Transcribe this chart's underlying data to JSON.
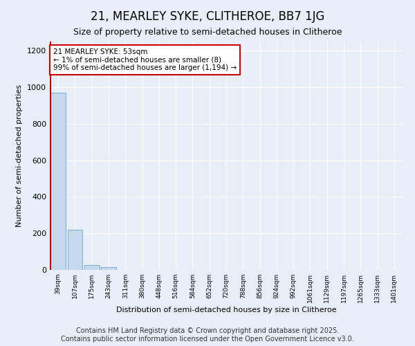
{
  "title": "21, MEARLEY SYKE, CLITHEROE, BB7 1JG",
  "subtitle": "Size of property relative to semi-detached houses in Clitheroe",
  "xlabel": "Distribution of semi-detached houses by size in Clitheroe",
  "ylabel": "Number of semi-detached properties",
  "categories": [
    "39sqm",
    "107sqm",
    "175sqm",
    "243sqm",
    "311sqm",
    "380sqm",
    "448sqm",
    "516sqm",
    "584sqm",
    "652sqm",
    "720sqm",
    "788sqm",
    "856sqm",
    "924sqm",
    "992sqm",
    "1061sqm",
    "1129sqm",
    "1197sqm",
    "1265sqm",
    "1333sqm",
    "1401sqm"
  ],
  "values": [
    968,
    221,
    25,
    14,
    0,
    0,
    0,
    0,
    0,
    0,
    0,
    0,
    0,
    0,
    0,
    0,
    0,
    0,
    0,
    0,
    0
  ],
  "bar_color": "#c5d8ee",
  "bar_edge_color": "#7aadd4",
  "marker_color": "#cc0000",
  "annotation_text": "21 MEARLEY SYKE: 53sqm\n← 1% of semi-detached houses are smaller (8)\n99% of semi-detached houses are larger (1,194) →",
  "annotation_box_color": "#ffffff",
  "annotation_border_color": "#cc0000",
  "ylim": [
    0,
    1250
  ],
  "yticks": [
    0,
    200,
    400,
    600,
    800,
    1000,
    1200
  ],
  "footer": "Contains HM Land Registry data © Crown copyright and database right 2025.\nContains public sector information licensed under the Open Government Licence v3.0.",
  "bg_color": "#e8eef8",
  "grid_color": "#ffffff",
  "title_fontsize": 12,
  "subtitle_fontsize": 9,
  "footer_fontsize": 7
}
